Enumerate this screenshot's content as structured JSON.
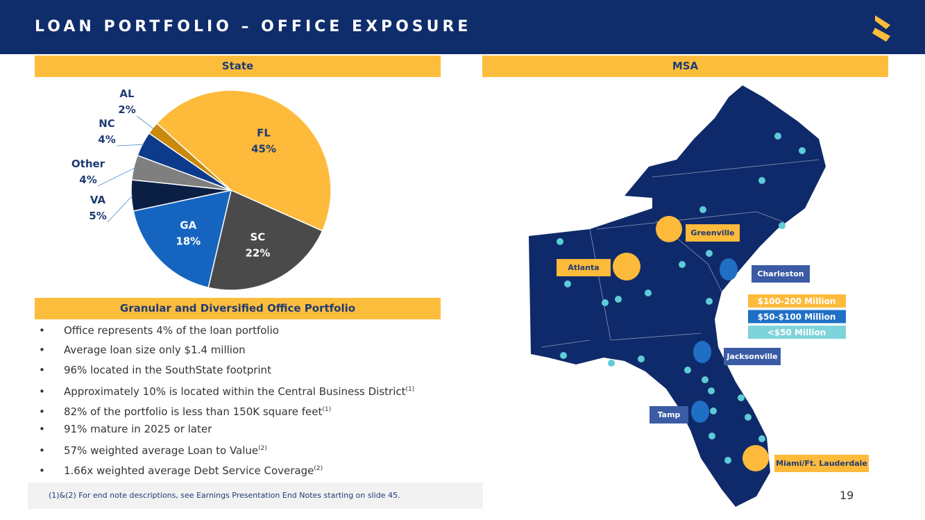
{
  "header": {
    "title": "LOAN PORTFOLIO – OFFICE EXPOSURE"
  },
  "chart_data": {
    "type": "pie",
    "title": "State",
    "categories": [
      "FL",
      "SC",
      "GA",
      "VA",
      "Other",
      "NC",
      "AL"
    ],
    "values": [
      45,
      22,
      18,
      5,
      4,
      4,
      2
    ],
    "value_labels": [
      "45%",
      "22%",
      "18%",
      "5%",
      "4%",
      "4%",
      "2%"
    ],
    "colors": [
      "#fdba3b",
      "#4a4a4a",
      "#1565c0",
      "#0b1f45",
      "#7f7f7f",
      "#0c3b8c",
      "#c98a0c"
    ]
  },
  "portfolio": {
    "title": "Granular and Diversified Office Portfolio",
    "bullets": [
      {
        "text": "Office represents 4% of the loan portfolio"
      },
      {
        "text": "Average loan size only $1.4 million"
      },
      {
        "text": "96% located in the SouthState footprint"
      },
      {
        "text": "Approximately 10% is located within the Central Business District",
        "note": "(1)"
      },
      {
        "text": "82% of the portfolio is less than 150K square feet",
        "note": "(1)"
      },
      {
        "text": "91% mature in 2025 or later"
      },
      {
        "text": "57% weighted average Loan to Value",
        "note": "(2)"
      },
      {
        "text": "1.66x weighted average Debt Service Coverage",
        "note": "(2)"
      }
    ]
  },
  "msa": {
    "title": "MSA",
    "markets": [
      "Greenville",
      "Atlanta",
      "Charleston",
      "Jacksonville",
      "Tamp",
      "Miami/Ft. Lauderdale"
    ],
    "legend": [
      "$100-200 Million",
      "$50-$100 Million",
      "<$50 Million"
    ]
  },
  "footnote": "(1)&(2)  For end note descriptions, see Earnings Presentation End Notes starting on slide 45.",
  "page_number": "19"
}
